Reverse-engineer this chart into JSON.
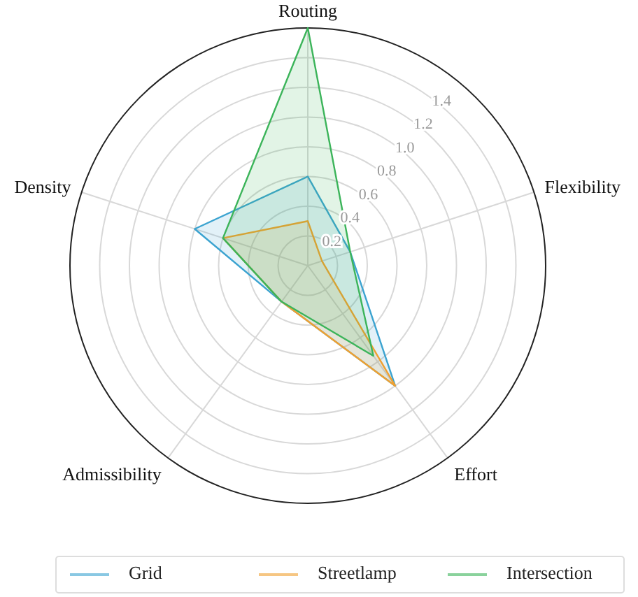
{
  "chart_data": {
    "type": "radar",
    "categories": [
      "Routing",
      "Flexibility",
      "Effort",
      "Admissibility",
      "Density"
    ],
    "series": [
      {
        "name": "Grid",
        "color": "#3ba3d0",
        "values": [
          0.6,
          0.3,
          1.0,
          0.3,
          0.8
        ]
      },
      {
        "name": "Streetlamp",
        "color": "#f0a030",
        "values": [
          0.3,
          0.1,
          1.0,
          0.3,
          0.6
        ]
      },
      {
        "name": "Intersection",
        "color": "#3cb45a",
        "values": [
          1.6,
          0.3,
          0.75,
          0.3,
          0.6
        ]
      }
    ],
    "ylim": [
      0,
      1.6
    ],
    "yticks": [
      0.2,
      0.4,
      0.6,
      0.8,
      {
        "value": 1,
        "label": "1.0"
      },
      1.2,
      1.4
    ],
    "grid": true,
    "legend": "bottom"
  }
}
